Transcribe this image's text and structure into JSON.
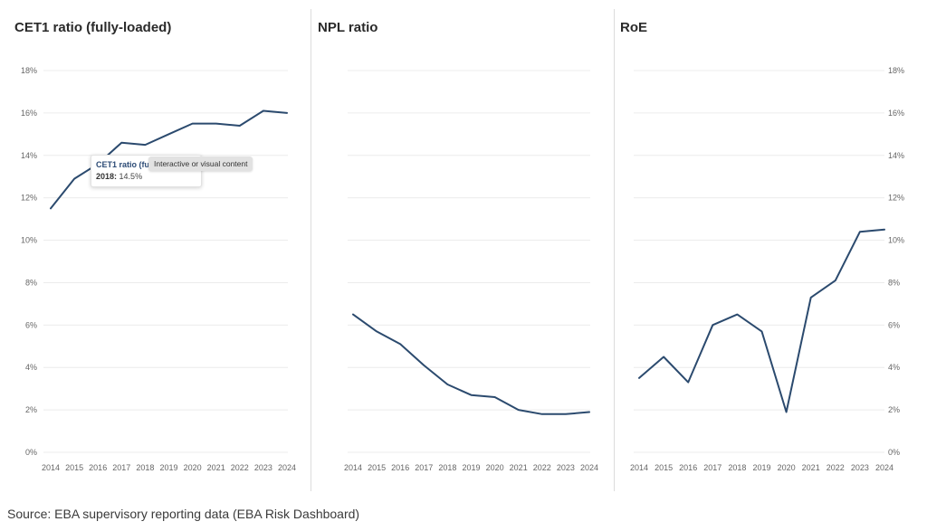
{
  "chart_data": [
    {
      "type": "line",
      "title": "CET1 ratio (fully-loaded)",
      "categories": [
        "2014",
        "2015",
        "2016",
        "2017",
        "2018",
        "2019",
        "2020",
        "2021",
        "2022",
        "2023",
        "2024"
      ],
      "values": [
        11.5,
        12.9,
        13.6,
        14.6,
        14.5,
        15.0,
        15.5,
        15.5,
        15.4,
        16.1,
        16.0
      ],
      "yticks": [
        "0%",
        "2%",
        "4%",
        "6%",
        "8%",
        "10%",
        "12%",
        "14%",
        "16%",
        "18%"
      ],
      "ylim": [
        0,
        18
      ],
      "y_axis_side": "left",
      "grid": true,
      "color": "#2b4a6e"
    },
    {
      "type": "line",
      "title": "NPL ratio",
      "categories": [
        "2014",
        "2015",
        "2016",
        "2017",
        "2018",
        "2019",
        "2020",
        "2021",
        "2022",
        "2023",
        "2024"
      ],
      "values": [
        6.5,
        5.7,
        5.1,
        4.1,
        3.2,
        2.7,
        2.6,
        2.0,
        1.8,
        1.8,
        1.9
      ],
      "yticks": [],
      "ylim": [
        0,
        18
      ],
      "y_axis_side": "none",
      "grid": true,
      "color": "#2b4a6e"
    },
    {
      "type": "line",
      "title": "RoE",
      "categories": [
        "2014",
        "2015",
        "2016",
        "2017",
        "2018",
        "2019",
        "2020",
        "2021",
        "2022",
        "2023",
        "2024"
      ],
      "values": [
        3.5,
        4.5,
        3.3,
        6.0,
        6.5,
        5.7,
        1.9,
        7.3,
        8.1,
        10.4,
        10.5
      ],
      "yticks": [
        "0%",
        "2%",
        "4%",
        "6%",
        "8%",
        "10%",
        "12%",
        "14%",
        "16%",
        "18%"
      ],
      "ylim": [
        0,
        18
      ],
      "y_axis_side": "right",
      "grid": true,
      "color": "#2b4a6e"
    }
  ],
  "tooltip": {
    "series": "CET1 ratio (fu",
    "year": "2018:",
    "value": "14.5%"
  },
  "overlay_label": "Interactive or visual content",
  "source": "Source: EBA supervisory reporting data (EBA Risk Dashboard)"
}
